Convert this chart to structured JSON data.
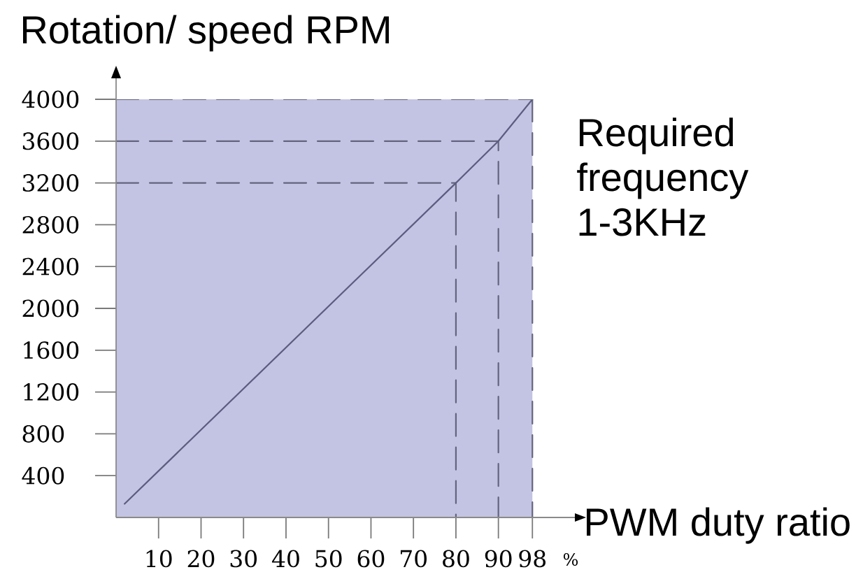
{
  "chart_data": {
    "type": "line",
    "xlabel": "PWM duty ratio",
    "ylabel": "Rotation/ speed RPM",
    "annotations": [
      "Required frequency 1-3KHz",
      "%"
    ],
    "xlim": [
      0,
      108
    ],
    "ylim": [
      0,
      4000
    ],
    "xticks": [
      10,
      20,
      30,
      40,
      50,
      60,
      70,
      80,
      90,
      98
    ],
    "yticks": [
      400,
      800,
      1200,
      1600,
      2000,
      2400,
      2800,
      3200,
      3600,
      4000
    ],
    "bands": [
      {
        "axis": "x",
        "from": 0,
        "to": 98,
        "color": "#c3c4e3"
      }
    ],
    "series": [
      {
        "color": "#64647e",
        "line_style": "dashed",
        "x": [
          0,
          80,
          80
        ],
        "values": [
          3200,
          3200,
          0
        ]
      },
      {
        "color": "#64647e",
        "line_style": "dashed",
        "x": [
          0,
          90,
          90
        ],
        "values": [
          3600,
          3600,
          0
        ]
      },
      {
        "color": "#64647e",
        "line_style": "dashed",
        "x": [
          0,
          98
        ],
        "values": [
          4000,
          4000
        ]
      },
      {
        "color": "#64647e",
        "line_style": "dashed",
        "x": [
          98,
          98
        ],
        "values": [
          4000,
          0
        ]
      },
      {
        "color": "#5c5c80",
        "line_style": "solid",
        "x": [
          2,
          80,
          90,
          98
        ],
        "values": [
          130,
          3200,
          3600,
          4000
        ]
      }
    ]
  }
}
